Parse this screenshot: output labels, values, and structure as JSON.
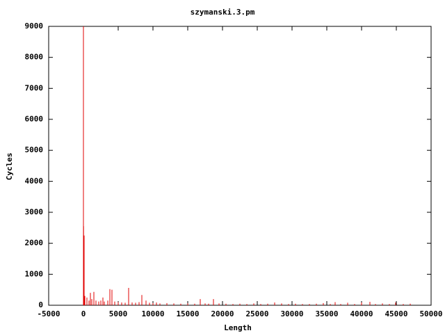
{
  "chart_data": {
    "type": "impulses",
    "title": "szymanski.3.pm",
    "xlabel": "Length",
    "ylabel": "Cycles",
    "color": "#e00000",
    "xlim": [
      -5000,
      50000
    ],
    "xticks": [
      -5000,
      0,
      5000,
      10000,
      15000,
      20000,
      25000,
      30000,
      35000,
      40000,
      45000,
      50000
    ],
    "ylim": [
      0,
      9000
    ],
    "yticks": [
      0,
      1000,
      2000,
      3000,
      4000,
      5000,
      6000,
      7000,
      8000,
      9000
    ],
    "x": [
      0,
      20,
      100,
      200,
      500,
      800,
      1000,
      1200,
      1500,
      1800,
      2200,
      2500,
      2800,
      3000,
      3500,
      3800,
      4100,
      4500,
      5000,
      5500,
      6000,
      6500,
      7000,
      7500,
      8000,
      8400,
      9000,
      9500,
      10000,
      10500,
      11000,
      12000,
      13000,
      14000,
      15000,
      16000,
      16800,
      17500,
      18000,
      18700,
      19500,
      20500,
      21500,
      22500,
      23500,
      24500,
      25500,
      26500,
      27500,
      28500,
      29500,
      30500,
      31500,
      32500,
      33500,
      34500,
      35500,
      36200,
      37000,
      38000,
      39000,
      40000,
      41200,
      42000,
      43000,
      44000,
      44900,
      46000,
      47000
    ],
    "values": [
      9000,
      2550,
      2250,
      300,
      250,
      150,
      400,
      200,
      430,
      150,
      120,
      150,
      250,
      120,
      150,
      520,
      500,
      120,
      100,
      90,
      80,
      560,
      90,
      80,
      100,
      330,
      150,
      80,
      70,
      90,
      60,
      70,
      60,
      50,
      60,
      50,
      200,
      60,
      50,
      200,
      60,
      50,
      40,
      50,
      40,
      60,
      40,
      50,
      90,
      60,
      40,
      50,
      40,
      40,
      50,
      70,
      40,
      100,
      40,
      80,
      40,
      90,
      110,
      40,
      60,
      40,
      90,
      40,
      50
    ]
  }
}
